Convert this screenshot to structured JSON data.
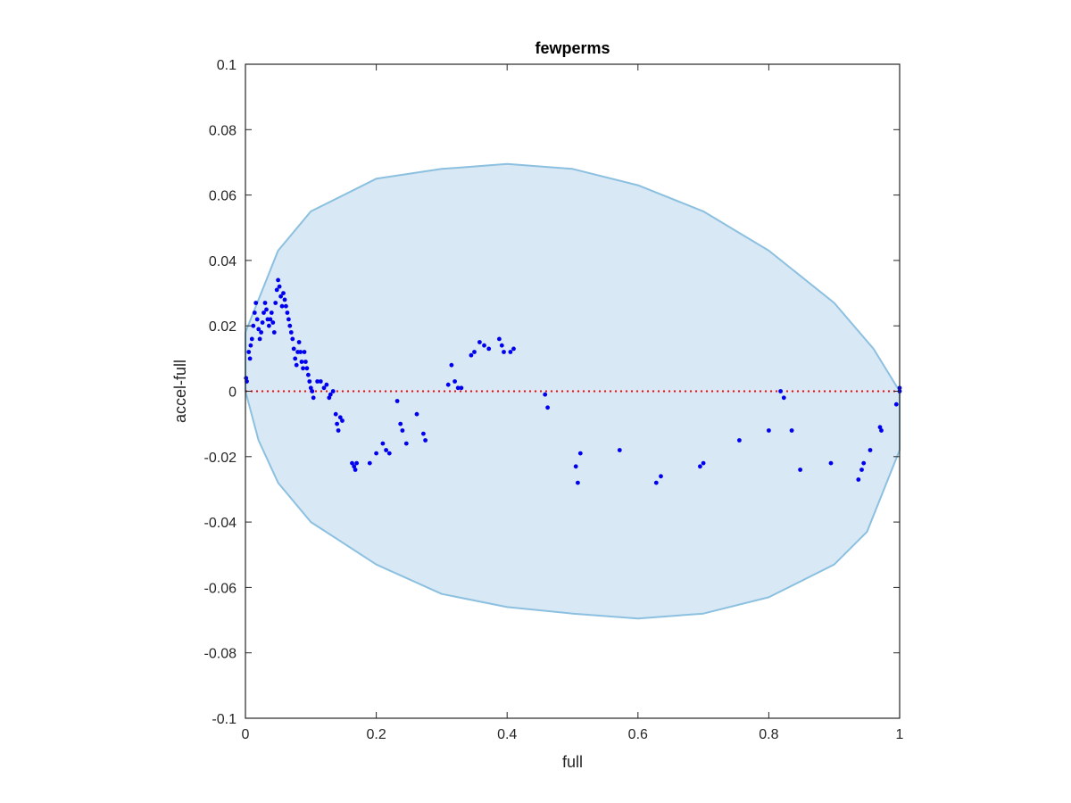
{
  "chart_data": {
    "type": "scatter",
    "title": "fewperms",
    "xlabel": "full",
    "ylabel": "accel-full",
    "xlim": [
      0,
      1
    ],
    "ylim": [
      -0.1,
      0.1
    ],
    "x_ticks": [
      0,
      0.2,
      0.4,
      0.6,
      0.8,
      1
    ],
    "x_tick_labels": [
      "0",
      "0.2",
      "0.4",
      "0.6",
      "0.8",
      "1"
    ],
    "y_ticks": [
      -0.1,
      -0.08,
      -0.06,
      -0.04,
      -0.02,
      0,
      0.02,
      0.04,
      0.06,
      0.08,
      0.1
    ],
    "y_tick_labels": [
      "-0.1",
      "-0.08",
      "-0.06",
      "-0.04",
      "-0.02",
      "0",
      "0.02",
      "0.04",
      "0.06",
      "0.08",
      "0.1"
    ],
    "grid": false,
    "colors": {
      "points": "#0000ee",
      "ellipse_fill": "#d8e8f4",
      "ellipse_edge": "#8cc0e0",
      "zero_line": "#ff0000",
      "axes": "#262626"
    },
    "reference_line": {
      "y": 0,
      "style": "dotted"
    },
    "ellipse": {
      "points": [
        [
          0.0,
          0.018
        ],
        [
          0.05,
          0.043
        ],
        [
          0.1,
          0.055
        ],
        [
          0.2,
          0.065
        ],
        [
          0.3,
          0.068
        ],
        [
          0.4,
          0.0695
        ],
        [
          0.5,
          0.068
        ],
        [
          0.6,
          0.063
        ],
        [
          0.7,
          0.055
        ],
        [
          0.8,
          0.043
        ],
        [
          0.9,
          0.027
        ],
        [
          0.96,
          0.013
        ],
        [
          1.0,
          0.0
        ],
        [
          1.0,
          -0.018
        ],
        [
          0.95,
          -0.043
        ],
        [
          0.9,
          -0.053
        ],
        [
          0.8,
          -0.063
        ],
        [
          0.7,
          -0.068
        ],
        [
          0.6,
          -0.0695
        ],
        [
          0.5,
          -0.068
        ],
        [
          0.4,
          -0.066
        ],
        [
          0.3,
          -0.062
        ],
        [
          0.2,
          -0.053
        ],
        [
          0.1,
          -0.04
        ],
        [
          0.05,
          -0.028
        ],
        [
          0.02,
          -0.015
        ],
        [
          0.0,
          0.0
        ]
      ]
    },
    "series": [
      {
        "points": [
          [
            0.001,
            0.004
          ],
          [
            0.002,
            0.003
          ],
          [
            0.005,
            0.012
          ],
          [
            0.007,
            0.01
          ],
          [
            0.008,
            0.014
          ],
          [
            0.01,
            0.016
          ],
          [
            0.012,
            0.02
          ],
          [
            0.014,
            0.024
          ],
          [
            0.016,
            0.027
          ],
          [
            0.018,
            0.022
          ],
          [
            0.02,
            0.019
          ],
          [
            0.022,
            0.016
          ],
          [
            0.024,
            0.018
          ],
          [
            0.026,
            0.021
          ],
          [
            0.028,
            0.024
          ],
          [
            0.03,
            0.027
          ],
          [
            0.032,
            0.025
          ],
          [
            0.034,
            0.022
          ],
          [
            0.036,
            0.02
          ],
          [
            0.038,
            0.022
          ],
          [
            0.04,
            0.024
          ],
          [
            0.042,
            0.021
          ],
          [
            0.044,
            0.018
          ],
          [
            0.046,
            0.027
          ],
          [
            0.048,
            0.031
          ],
          [
            0.05,
            0.034
          ],
          [
            0.052,
            0.032
          ],
          [
            0.054,
            0.029
          ],
          [
            0.056,
            0.026
          ],
          [
            0.058,
            0.03
          ],
          [
            0.06,
            0.028
          ],
          [
            0.062,
            0.026
          ],
          [
            0.064,
            0.024
          ],
          [
            0.066,
            0.022
          ],
          [
            0.068,
            0.02
          ],
          [
            0.07,
            0.018
          ],
          [
            0.072,
            0.016
          ],
          [
            0.074,
            0.013
          ],
          [
            0.076,
            0.01
          ],
          [
            0.078,
            0.008
          ],
          [
            0.08,
            0.012
          ],
          [
            0.082,
            0.015
          ],
          [
            0.084,
            0.012
          ],
          [
            0.086,
            0.009
          ],
          [
            0.088,
            0.007
          ],
          [
            0.09,
            0.012
          ],
          [
            0.092,
            0.009
          ],
          [
            0.094,
            0.007
          ],
          [
            0.096,
            0.005
          ],
          [
            0.098,
            0.003
          ],
          [
            0.1,
            0.001
          ],
          [
            0.102,
            0.0
          ],
          [
            0.104,
            -0.002
          ],
          [
            0.11,
            0.003
          ],
          [
            0.115,
            0.003
          ],
          [
            0.12,
            0.001
          ],
          [
            0.124,
            0.002
          ],
          [
            0.128,
            -0.002
          ],
          [
            0.13,
            -0.001
          ],
          [
            0.134,
            0.0
          ],
          [
            0.138,
            -0.007
          ],
          [
            0.14,
            -0.01
          ],
          [
            0.142,
            -0.012
          ],
          [
            0.145,
            -0.008
          ],
          [
            0.148,
            -0.009
          ],
          [
            0.163,
            -0.022
          ],
          [
            0.166,
            -0.023
          ],
          [
            0.168,
            -0.024
          ],
          [
            0.17,
            -0.022
          ],
          [
            0.19,
            -0.022
          ],
          [
            0.2,
            -0.019
          ],
          [
            0.21,
            -0.016
          ],
          [
            0.215,
            -0.018
          ],
          [
            0.22,
            -0.019
          ],
          [
            0.232,
            -0.003
          ],
          [
            0.237,
            -0.01
          ],
          [
            0.24,
            -0.012
          ],
          [
            0.246,
            -0.016
          ],
          [
            0.262,
            -0.007
          ],
          [
            0.272,
            -0.013
          ],
          [
            0.275,
            -0.015
          ],
          [
            0.31,
            0.002
          ],
          [
            0.315,
            0.008
          ],
          [
            0.32,
            0.003
          ],
          [
            0.325,
            0.001
          ],
          [
            0.33,
            0.001
          ],
          [
            0.345,
            0.011
          ],
          [
            0.35,
            0.012
          ],
          [
            0.358,
            0.015
          ],
          [
            0.365,
            0.014
          ],
          [
            0.372,
            0.013
          ],
          [
            0.388,
            0.016
          ],
          [
            0.392,
            0.014
          ],
          [
            0.395,
            0.012
          ],
          [
            0.405,
            0.012
          ],
          [
            0.41,
            0.013
          ],
          [
            0.458,
            -0.001
          ],
          [
            0.462,
            -0.005
          ],
          [
            0.505,
            -0.023
          ],
          [
            0.508,
            -0.028
          ],
          [
            0.512,
            -0.019
          ],
          [
            0.572,
            -0.018
          ],
          [
            0.628,
            -0.028
          ],
          [
            0.635,
            -0.026
          ],
          [
            0.695,
            -0.023
          ],
          [
            0.7,
            -0.022
          ],
          [
            0.755,
            -0.015
          ],
          [
            0.8,
            -0.012
          ],
          [
            0.818,
            0.0
          ],
          [
            0.823,
            -0.002
          ],
          [
            0.835,
            -0.012
          ],
          [
            0.848,
            -0.024
          ],
          [
            0.895,
            -0.022
          ],
          [
            0.937,
            -0.027
          ],
          [
            0.942,
            -0.024
          ],
          [
            0.945,
            -0.022
          ],
          [
            0.955,
            -0.018
          ],
          [
            0.97,
            -0.011
          ],
          [
            0.972,
            -0.012
          ],
          [
            0.995,
            -0.004
          ],
          [
            1.0,
            0.0
          ],
          [
            1.0,
            0.001
          ]
        ]
      }
    ]
  }
}
